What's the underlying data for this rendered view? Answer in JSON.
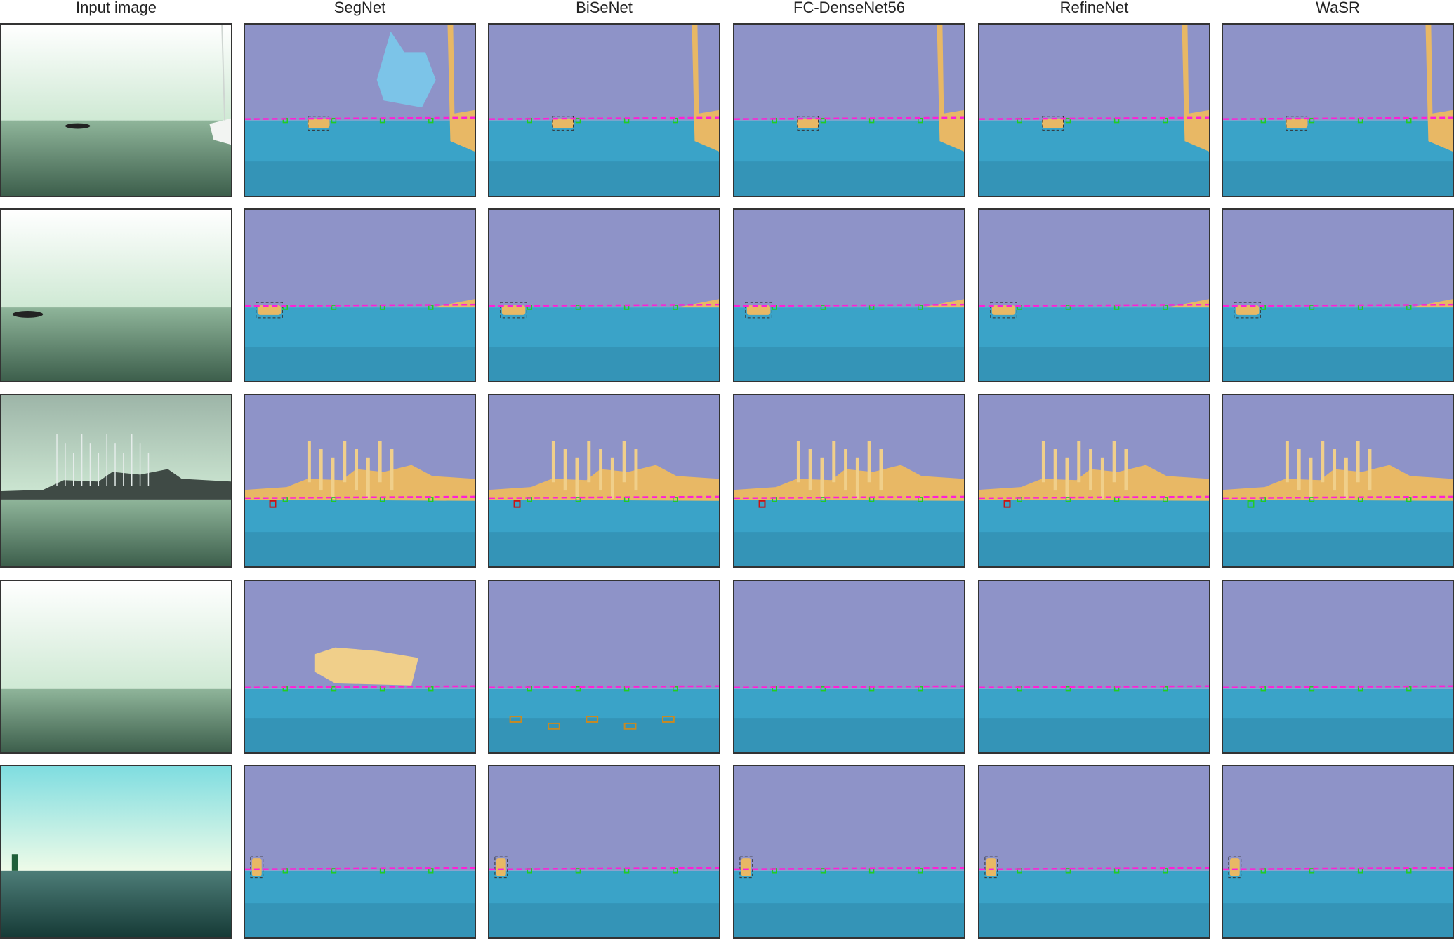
{
  "figure": {
    "columns": [
      {
        "key": "input",
        "label": "Input image"
      },
      {
        "key": "segnet",
        "label": "SegNet"
      },
      {
        "key": "bisenet",
        "label": "BiSeNet"
      },
      {
        "key": "fcdensenet",
        "label": "FC-DenseNet56"
      },
      {
        "key": "refinenet",
        "label": "RefineNet"
      },
      {
        "key": "wasr",
        "label": "WaSR"
      }
    ],
    "rows": [
      {
        "scene": "fog-boat-sailboat"
      },
      {
        "scene": "fog-small-boat"
      },
      {
        "scene": "marina-clouds"
      },
      {
        "scene": "empty-fog"
      },
      {
        "scene": "buoy-open-sea"
      }
    ],
    "colors": {
      "sky": "#8e93c8",
      "water": "#3aa3c8",
      "obstacle": "#e8b865",
      "horizon": "#ff1fd6",
      "true_positive": "#22cc22",
      "false_negative": "#cc1111",
      "false_positive": "#c88a22"
    }
  }
}
